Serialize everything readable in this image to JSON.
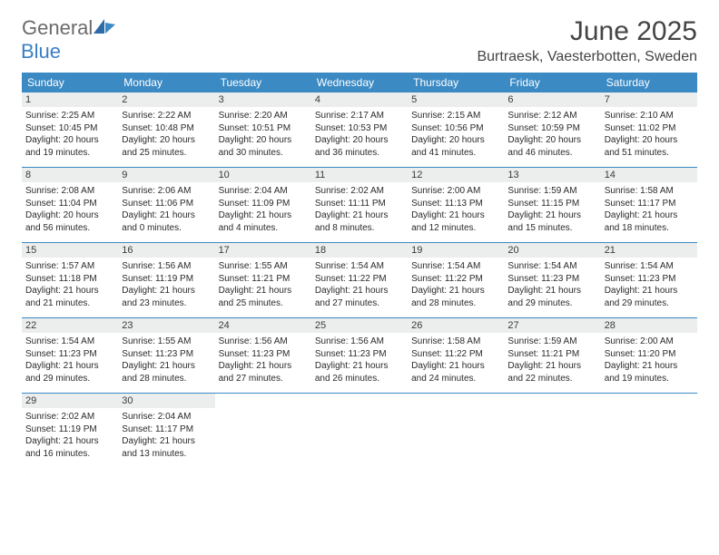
{
  "logo": {
    "text1": "General",
    "text2": "Blue"
  },
  "title": "June 2025",
  "location": "Burtraesk, Vaesterbotten, Sweden",
  "colors": {
    "header_bg": "#3b8ac4",
    "header_text": "#ffffff",
    "daynum_bg": "#eceded",
    "divider": "#3b8ac4",
    "logo_gray": "#6b6b6b",
    "logo_blue": "#3b7fc4"
  },
  "weekdays": [
    "Sunday",
    "Monday",
    "Tuesday",
    "Wednesday",
    "Thursday",
    "Friday",
    "Saturday"
  ],
  "weeks": [
    [
      {
        "n": "1",
        "sunrise": "Sunrise: 2:25 AM",
        "sunset": "Sunset: 10:45 PM",
        "daylight": "Daylight: 20 hours and 19 minutes."
      },
      {
        "n": "2",
        "sunrise": "Sunrise: 2:22 AM",
        "sunset": "Sunset: 10:48 PM",
        "daylight": "Daylight: 20 hours and 25 minutes."
      },
      {
        "n": "3",
        "sunrise": "Sunrise: 2:20 AM",
        "sunset": "Sunset: 10:51 PM",
        "daylight": "Daylight: 20 hours and 30 minutes."
      },
      {
        "n": "4",
        "sunrise": "Sunrise: 2:17 AM",
        "sunset": "Sunset: 10:53 PM",
        "daylight": "Daylight: 20 hours and 36 minutes."
      },
      {
        "n": "5",
        "sunrise": "Sunrise: 2:15 AM",
        "sunset": "Sunset: 10:56 PM",
        "daylight": "Daylight: 20 hours and 41 minutes."
      },
      {
        "n": "6",
        "sunrise": "Sunrise: 2:12 AM",
        "sunset": "Sunset: 10:59 PM",
        "daylight": "Daylight: 20 hours and 46 minutes."
      },
      {
        "n": "7",
        "sunrise": "Sunrise: 2:10 AM",
        "sunset": "Sunset: 11:02 PM",
        "daylight": "Daylight: 20 hours and 51 minutes."
      }
    ],
    [
      {
        "n": "8",
        "sunrise": "Sunrise: 2:08 AM",
        "sunset": "Sunset: 11:04 PM",
        "daylight": "Daylight: 20 hours and 56 minutes."
      },
      {
        "n": "9",
        "sunrise": "Sunrise: 2:06 AM",
        "sunset": "Sunset: 11:06 PM",
        "daylight": "Daylight: 21 hours and 0 minutes."
      },
      {
        "n": "10",
        "sunrise": "Sunrise: 2:04 AM",
        "sunset": "Sunset: 11:09 PM",
        "daylight": "Daylight: 21 hours and 4 minutes."
      },
      {
        "n": "11",
        "sunrise": "Sunrise: 2:02 AM",
        "sunset": "Sunset: 11:11 PM",
        "daylight": "Daylight: 21 hours and 8 minutes."
      },
      {
        "n": "12",
        "sunrise": "Sunrise: 2:00 AM",
        "sunset": "Sunset: 11:13 PM",
        "daylight": "Daylight: 21 hours and 12 minutes."
      },
      {
        "n": "13",
        "sunrise": "Sunrise: 1:59 AM",
        "sunset": "Sunset: 11:15 PM",
        "daylight": "Daylight: 21 hours and 15 minutes."
      },
      {
        "n": "14",
        "sunrise": "Sunrise: 1:58 AM",
        "sunset": "Sunset: 11:17 PM",
        "daylight": "Daylight: 21 hours and 18 minutes."
      }
    ],
    [
      {
        "n": "15",
        "sunrise": "Sunrise: 1:57 AM",
        "sunset": "Sunset: 11:18 PM",
        "daylight": "Daylight: 21 hours and 21 minutes."
      },
      {
        "n": "16",
        "sunrise": "Sunrise: 1:56 AM",
        "sunset": "Sunset: 11:19 PM",
        "daylight": "Daylight: 21 hours and 23 minutes."
      },
      {
        "n": "17",
        "sunrise": "Sunrise: 1:55 AM",
        "sunset": "Sunset: 11:21 PM",
        "daylight": "Daylight: 21 hours and 25 minutes."
      },
      {
        "n": "18",
        "sunrise": "Sunrise: 1:54 AM",
        "sunset": "Sunset: 11:22 PM",
        "daylight": "Daylight: 21 hours and 27 minutes."
      },
      {
        "n": "19",
        "sunrise": "Sunrise: 1:54 AM",
        "sunset": "Sunset: 11:22 PM",
        "daylight": "Daylight: 21 hours and 28 minutes."
      },
      {
        "n": "20",
        "sunrise": "Sunrise: 1:54 AM",
        "sunset": "Sunset: 11:23 PM",
        "daylight": "Daylight: 21 hours and 29 minutes."
      },
      {
        "n": "21",
        "sunrise": "Sunrise: 1:54 AM",
        "sunset": "Sunset: 11:23 PM",
        "daylight": "Daylight: 21 hours and 29 minutes."
      }
    ],
    [
      {
        "n": "22",
        "sunrise": "Sunrise: 1:54 AM",
        "sunset": "Sunset: 11:23 PM",
        "daylight": "Daylight: 21 hours and 29 minutes."
      },
      {
        "n": "23",
        "sunrise": "Sunrise: 1:55 AM",
        "sunset": "Sunset: 11:23 PM",
        "daylight": "Daylight: 21 hours and 28 minutes."
      },
      {
        "n": "24",
        "sunrise": "Sunrise: 1:56 AM",
        "sunset": "Sunset: 11:23 PM",
        "daylight": "Daylight: 21 hours and 27 minutes."
      },
      {
        "n": "25",
        "sunrise": "Sunrise: 1:56 AM",
        "sunset": "Sunset: 11:23 PM",
        "daylight": "Daylight: 21 hours and 26 minutes."
      },
      {
        "n": "26",
        "sunrise": "Sunrise: 1:58 AM",
        "sunset": "Sunset: 11:22 PM",
        "daylight": "Daylight: 21 hours and 24 minutes."
      },
      {
        "n": "27",
        "sunrise": "Sunrise: 1:59 AM",
        "sunset": "Sunset: 11:21 PM",
        "daylight": "Daylight: 21 hours and 22 minutes."
      },
      {
        "n": "28",
        "sunrise": "Sunrise: 2:00 AM",
        "sunset": "Sunset: 11:20 PM",
        "daylight": "Daylight: 21 hours and 19 minutes."
      }
    ],
    [
      {
        "n": "29",
        "sunrise": "Sunrise: 2:02 AM",
        "sunset": "Sunset: 11:19 PM",
        "daylight": "Daylight: 21 hours and 16 minutes."
      },
      {
        "n": "30",
        "sunrise": "Sunrise: 2:04 AM",
        "sunset": "Sunset: 11:17 PM",
        "daylight": "Daylight: 21 hours and 13 minutes."
      },
      {
        "n": "",
        "sunrise": "",
        "sunset": "",
        "daylight": ""
      },
      {
        "n": "",
        "sunrise": "",
        "sunset": "",
        "daylight": ""
      },
      {
        "n": "",
        "sunrise": "",
        "sunset": "",
        "daylight": ""
      },
      {
        "n": "",
        "sunrise": "",
        "sunset": "",
        "daylight": ""
      },
      {
        "n": "",
        "sunrise": "",
        "sunset": "",
        "daylight": ""
      }
    ]
  ]
}
